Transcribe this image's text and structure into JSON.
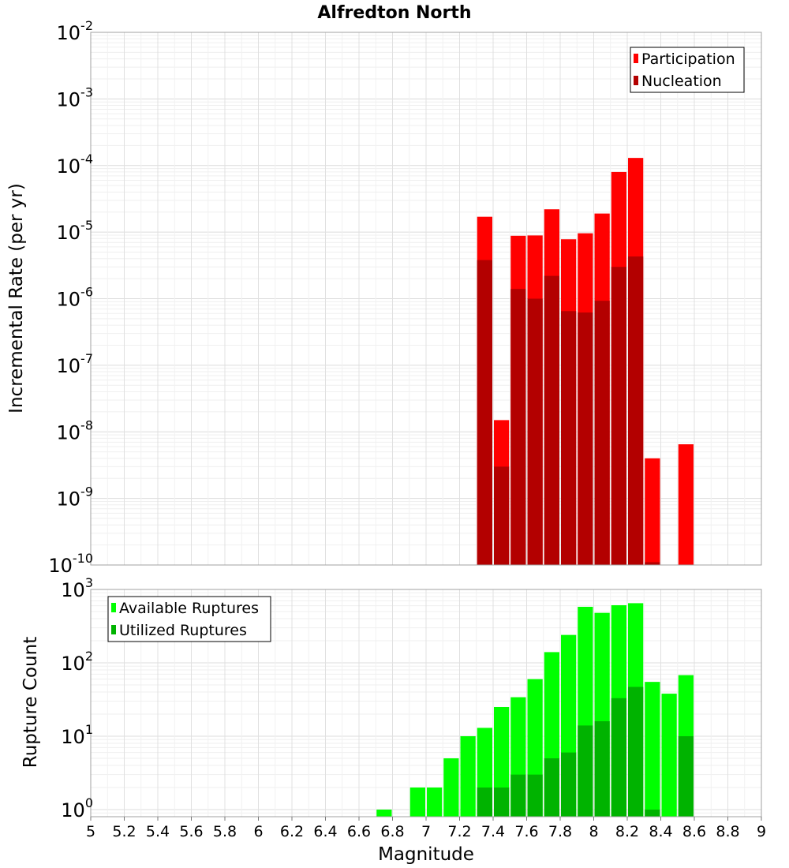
{
  "chart_data": [
    {
      "type": "bar",
      "title": "Alfredton North",
      "xlabel": "",
      "ylabel": "Incremental Rate (per yr)",
      "yscale": "log",
      "ylim": [
        1e-10,
        0.01
      ],
      "xlim": [
        5,
        9
      ],
      "grid": true,
      "legend_placement": "top-right",
      "ytick_labels": [
        {
          "base": "10",
          "exp": "-10"
        },
        {
          "base": "10",
          "exp": "-9"
        },
        {
          "base": "10",
          "exp": "-8"
        },
        {
          "base": "10",
          "exp": "-7"
        },
        {
          "base": "10",
          "exp": "-6"
        },
        {
          "base": "10",
          "exp": "-5"
        },
        {
          "base": "10",
          "exp": "-4"
        },
        {
          "base": "10",
          "exp": "-3"
        },
        {
          "base": "10",
          "exp": "-2"
        }
      ],
      "x": [
        7.35,
        7.45,
        7.55,
        7.65,
        7.75,
        7.85,
        7.95,
        8.05,
        8.15,
        8.25,
        8.35,
        8.55
      ],
      "series": [
        {
          "name": "Participation",
          "color": "#ff0000",
          "values": [
            1.7e-05,
            1.5e-08,
            8.8e-06,
            8.9e-06,
            2.2e-05,
            7.8e-06,
            9.6e-06,
            1.9e-05,
            8e-05,
            0.00013,
            4e-09,
            6.5e-09
          ]
        },
        {
          "name": "Nucleation",
          "color": "#b30000",
          "values": [
            3.8e-06,
            3e-09,
            1.4e-06,
            1e-06,
            2.2e-06,
            6.5e-07,
            6.2e-07,
            9.3e-07,
            3e-06,
            4.3e-06,
            1.1e-10,
            1e-10
          ]
        }
      ]
    },
    {
      "type": "bar",
      "title": "",
      "xlabel": "Magnitude",
      "ylabel": "Rupture Count",
      "yscale": "log",
      "ylim": [
        0.8,
        1000
      ],
      "xlim": [
        5,
        9
      ],
      "grid": true,
      "legend_placement": "top-left",
      "xtick_labels": [
        "5",
        "5.2",
        "5.4",
        "5.6",
        "5.8",
        "6",
        "6.2",
        "6.4",
        "6.6",
        "6.8",
        "7",
        "7.2",
        "7.4",
        "7.6",
        "7.8",
        "8",
        "8.2",
        "8.4",
        "8.6",
        "8.8",
        "9"
      ],
      "ytick_labels": [
        {
          "base": "10",
          "exp": "0"
        },
        {
          "base": "10",
          "exp": "1"
        },
        {
          "base": "10",
          "exp": "2"
        },
        {
          "base": "10",
          "exp": "3"
        }
      ],
      "x": [
        6.75,
        6.95,
        7.05,
        7.15,
        7.25,
        7.35,
        7.45,
        7.55,
        7.65,
        7.75,
        7.85,
        7.95,
        8.05,
        8.15,
        8.25,
        8.35,
        8.45,
        8.55
      ],
      "series": [
        {
          "name": "Available Ruptures",
          "color": "#00ff00",
          "values": [
            1,
            2,
            2,
            5,
            10,
            13,
            25,
            34,
            60,
            140,
            240,
            580,
            480,
            610,
            650,
            55,
            38,
            68
          ]
        },
        {
          "name": "Utilized Ruptures",
          "color": "#00b300",
          "values": [
            0,
            0,
            0,
            0,
            0,
            2,
            2,
            3,
            3,
            5,
            6,
            14,
            16,
            33,
            47,
            1,
            0,
            10
          ]
        }
      ]
    }
  ]
}
